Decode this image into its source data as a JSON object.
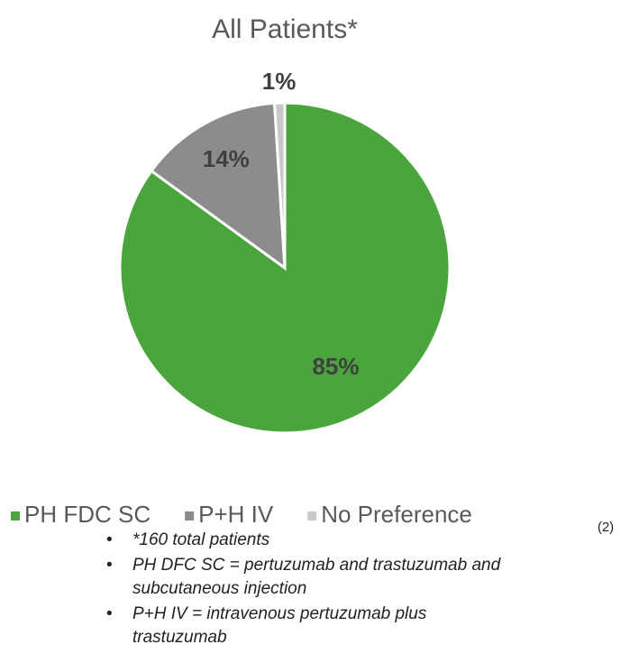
{
  "chart_data": {
    "type": "pie",
    "title": "All Patients*",
    "categories": [
      "PH FDC SC",
      "P+H IV",
      "No Preference"
    ],
    "values": [
      85,
      14,
      1
    ],
    "value_labels": [
      "85%",
      "14%",
      "1%"
    ],
    "colors": [
      "#4aa63c",
      "#8c8c8c",
      "#c8c8c8"
    ],
    "label_color": "#404040",
    "legend": "bottom",
    "reference": "(2)",
    "notes": [
      "*160 total patients",
      "PH DFC SC = pertuzumab and trastuzumab and subcutaneous injection",
      "P+H IV = intravenous pertuzumab plus trastuzumab"
    ]
  }
}
